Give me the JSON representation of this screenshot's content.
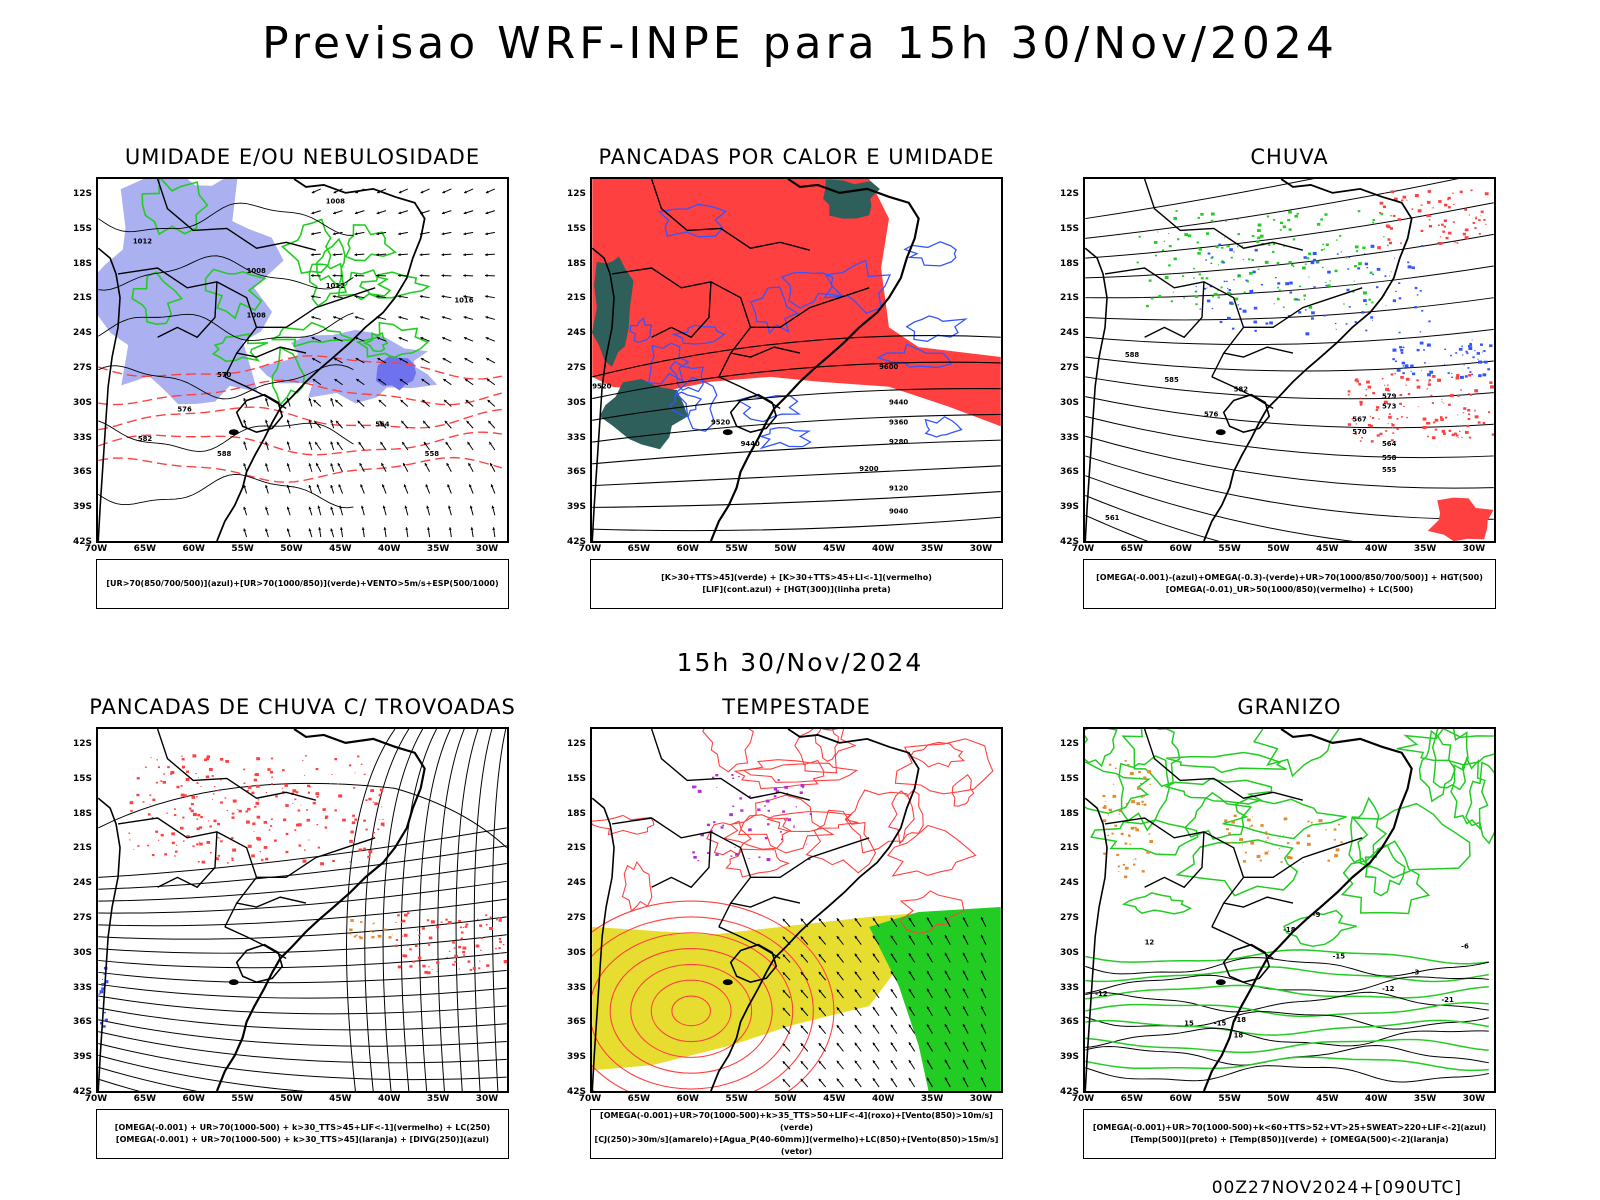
{
  "title": "Previsao WRF-INPE  para 15h 30/Nov/2024",
  "mid_title": "15h 30/Nov/2024",
  "footer": "00Z27NOV2024+[090UTC]",
  "axes": {
    "lat_labels": [
      "12S",
      "15S",
      "18S",
      "21S",
      "24S",
      "27S",
      "30S",
      "33S",
      "36S",
      "39S",
      "42S"
    ],
    "lon_labels": [
      "70W",
      "65W",
      "60W",
      "55W",
      "50W",
      "45W",
      "40W",
      "35W",
      "30W"
    ]
  },
  "colors": {
    "red": "#ff4040",
    "green": "#22cc22",
    "blue": "#3355ff",
    "lavender": "#aab0f0",
    "darkteal": "#2f5f5a",
    "yellow": "#e6dd30",
    "orange": "#e68a2e",
    "purple": "#b030d0"
  },
  "panels": [
    {
      "title": "UMIDADE E/OU NEBULOSIDADE",
      "legend": [
        "[UR>70(850/700/500)](azul)+[UR>70(1000/850)](verde)+VENTO>5m/s+ESP(500/1000)"
      ]
    },
    {
      "title": "PANCADAS POR CALOR E UMIDADE",
      "legend": [
        "[K>30+TTS>45](verde) + [K>30+TTS>45+LI<-1](vermelho)",
        "[LIF](cont.azul) + [HGT(300)](linha preta)"
      ]
    },
    {
      "title": "CHUVA",
      "legend": [
        "[OMEGA(-0.001)-(azul)+OMEGA(-0.3)-(verde)+UR>70(1000/850/700/500)] + HGT(500)",
        "[OMEGA(-0.01)_UR>50(1000/850)(vermelho) + LC(500)"
      ]
    },
    {
      "title": "PANCADAS DE CHUVA C/ TROVOADAS",
      "legend": [
        "[OMEGA(-0.001) + UR>70(1000-500) + k>30_TTS>45+LIF<-1](vermelho) + LC(250)",
        "[OMEGA(-0.001) + UR>70(1000-500) + k>30_TTS>45](laranja) + [DIVG(250)](azul)"
      ]
    },
    {
      "title": "TEMPESTADE",
      "legend": [
        "[OMEGA(-0.001)+UR>70(1000-500)+k>35_TTS>50+LIF<-4](roxo)+[Vento(850)>10m/s](verde)",
        "[CJ(250)>30m/s](amarelo)+[Agua_P(40-60mm)](vermelho)+LC(850)+[Vento(850)>15m/s](vetor)"
      ]
    },
    {
      "title": "GRANIZO",
      "legend": [
        "[OMEGA(-0.001)+UR>70(1000-500)+k<60+TTS>52+VT>25+SWEAT>220+LIF<-2](azul)",
        "[Temp(500)](preto) + [Temp(850)](verde) + [OMEGA(500)<-2](laranja)"
      ]
    }
  ],
  "contour_labels": {
    "p1": [
      "1008",
      "1012",
      "1008",
      "1008",
      "1012",
      "1016",
      "570",
      "576",
      "582",
      "588",
      "564",
      "558"
    ],
    "p2": [
      "9600",
      "9520",
      "9440",
      "9360",
      "9280",
      "9200",
      "9120",
      "9040",
      "9520",
      "9440"
    ],
    "p3": [
      "576",
      "570",
      "564",
      "561",
      "558",
      "555",
      "567",
      "573",
      "579",
      "582",
      "585",
      "588"
    ],
    "p6": [
      "-12",
      "-15",
      "-18",
      "-21",
      "-12",
      "-15",
      "-18",
      "-9",
      "-6",
      "-3",
      "12",
      "15",
      "18"
    ]
  }
}
